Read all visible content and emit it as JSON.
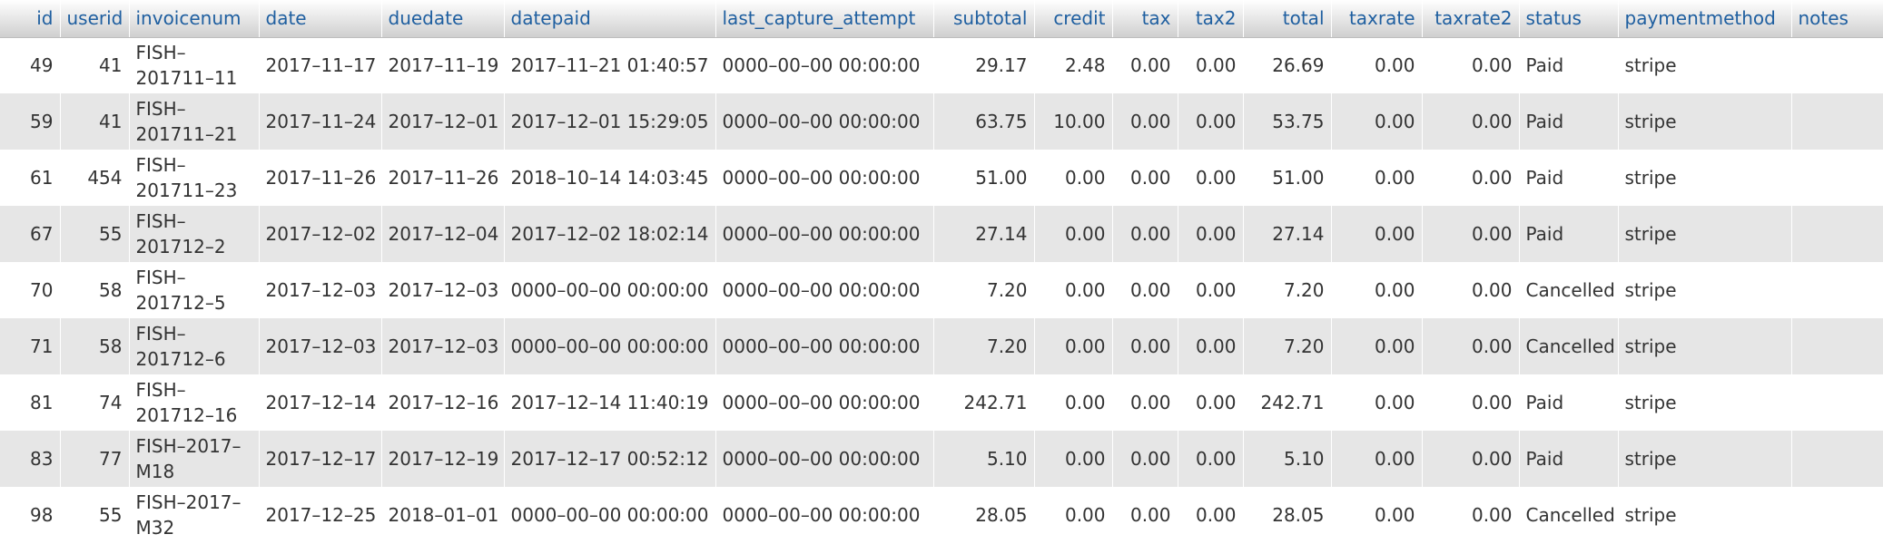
{
  "table": {
    "columns": [
      {
        "key": "id",
        "label": "id",
        "align": "right"
      },
      {
        "key": "userid",
        "label": "userid",
        "align": "right"
      },
      {
        "key": "invoicenum",
        "label": "invoicenum",
        "align": "left"
      },
      {
        "key": "date",
        "label": "date",
        "align": "left"
      },
      {
        "key": "duedate",
        "label": "duedate",
        "align": "left"
      },
      {
        "key": "datepaid",
        "label": "datepaid",
        "align": "left"
      },
      {
        "key": "last_capture_attempt",
        "label": "last_capture_attempt",
        "align": "left"
      },
      {
        "key": "subtotal",
        "label": "subtotal",
        "align": "right"
      },
      {
        "key": "credit",
        "label": "credit",
        "align": "right"
      },
      {
        "key": "tax",
        "label": "tax",
        "align": "right"
      },
      {
        "key": "tax2",
        "label": "tax2",
        "align": "right"
      },
      {
        "key": "total",
        "label": "total",
        "align": "right"
      },
      {
        "key": "taxrate",
        "label": "taxrate",
        "align": "right"
      },
      {
        "key": "taxrate2",
        "label": "taxrate2",
        "align": "right"
      },
      {
        "key": "status",
        "label": "status",
        "align": "left"
      },
      {
        "key": "paymentmethod",
        "label": "paymentmethod",
        "align": "left"
      },
      {
        "key": "notes",
        "label": "notes",
        "align": "left"
      }
    ],
    "rows": [
      {
        "id": "49",
        "userid": "41",
        "invoicenum": "FISH–201711–11",
        "date": "2017–11–17",
        "duedate": "2017–11–19",
        "datepaid": "2017–11–21 01:40:57",
        "last_capture_attempt": "0000–00–00 00:00:00",
        "subtotal": "29.17",
        "credit": "2.48",
        "tax": "0.00",
        "tax2": "0.00",
        "total": "26.69",
        "taxrate": "0.00",
        "taxrate2": "0.00",
        "status": "Paid",
        "paymentmethod": "stripe",
        "notes": ""
      },
      {
        "id": "59",
        "userid": "41",
        "invoicenum": "FISH–201711–21",
        "date": "2017–11–24",
        "duedate": "2017–12–01",
        "datepaid": "2017–12–01 15:29:05",
        "last_capture_attempt": "0000–00–00 00:00:00",
        "subtotal": "63.75",
        "credit": "10.00",
        "tax": "0.00",
        "tax2": "0.00",
        "total": "53.75",
        "taxrate": "0.00",
        "taxrate2": "0.00",
        "status": "Paid",
        "paymentmethod": "stripe",
        "notes": ""
      },
      {
        "id": "61",
        "userid": "454",
        "invoicenum": "FISH–201711–23",
        "date": "2017–11–26",
        "duedate": "2017–11–26",
        "datepaid": "2018–10–14 14:03:45",
        "last_capture_attempt": "0000–00–00 00:00:00",
        "subtotal": "51.00",
        "credit": "0.00",
        "tax": "0.00",
        "tax2": "0.00",
        "total": "51.00",
        "taxrate": "0.00",
        "taxrate2": "0.00",
        "status": "Paid",
        "paymentmethod": "stripe",
        "notes": ""
      },
      {
        "id": "67",
        "userid": "55",
        "invoicenum": "FISH–201712–2",
        "date": "2017–12–02",
        "duedate": "2017–12–04",
        "datepaid": "2017–12–02 18:02:14",
        "last_capture_attempt": "0000–00–00 00:00:00",
        "subtotal": "27.14",
        "credit": "0.00",
        "tax": "0.00",
        "tax2": "0.00",
        "total": "27.14",
        "taxrate": "0.00",
        "taxrate2": "0.00",
        "status": "Paid",
        "paymentmethod": "stripe",
        "notes": ""
      },
      {
        "id": "70",
        "userid": "58",
        "invoicenum": "FISH–201712–5",
        "date": "2017–12–03",
        "duedate": "2017–12–03",
        "datepaid": "0000–00–00 00:00:00",
        "last_capture_attempt": "0000–00–00 00:00:00",
        "subtotal": "7.20",
        "credit": "0.00",
        "tax": "0.00",
        "tax2": "0.00",
        "total": "7.20",
        "taxrate": "0.00",
        "taxrate2": "0.00",
        "status": "Cancelled",
        "paymentmethod": "stripe",
        "notes": ""
      },
      {
        "id": "71",
        "userid": "58",
        "invoicenum": "FISH–201712–6",
        "date": "2017–12–03",
        "duedate": "2017–12–03",
        "datepaid": "0000–00–00 00:00:00",
        "last_capture_attempt": "0000–00–00 00:00:00",
        "subtotal": "7.20",
        "credit": "0.00",
        "tax": "0.00",
        "tax2": "0.00",
        "total": "7.20",
        "taxrate": "0.00",
        "taxrate2": "0.00",
        "status": "Cancelled",
        "paymentmethod": "stripe",
        "notes": ""
      },
      {
        "id": "81",
        "userid": "74",
        "invoicenum": "FISH–201712–16",
        "date": "2017–12–14",
        "duedate": "2017–12–16",
        "datepaid": "2017–12–14 11:40:19",
        "last_capture_attempt": "0000–00–00 00:00:00",
        "subtotal": "242.71",
        "credit": "0.00",
        "tax": "0.00",
        "tax2": "0.00",
        "total": "242.71",
        "taxrate": "0.00",
        "taxrate2": "0.00",
        "status": "Paid",
        "paymentmethod": "stripe",
        "notes": ""
      },
      {
        "id": "83",
        "userid": "77",
        "invoicenum": "FISH–2017–M18",
        "date": "2017–12–17",
        "duedate": "2017–12–19",
        "datepaid": "2017–12–17 00:52:12",
        "last_capture_attempt": "0000–00–00 00:00:00",
        "subtotal": "5.10",
        "credit": "0.00",
        "tax": "0.00",
        "tax2": "0.00",
        "total": "5.10",
        "taxrate": "0.00",
        "taxrate2": "0.00",
        "status": "Paid",
        "paymentmethod": "stripe",
        "notes": ""
      },
      {
        "id": "98",
        "userid": "55",
        "invoicenum": "FISH–2017–M32",
        "date": "2017–12–25",
        "duedate": "2018–01–01",
        "datepaid": "0000–00–00 00:00:00",
        "last_capture_attempt": "0000–00–00 00:00:00",
        "subtotal": "28.05",
        "credit": "0.00",
        "tax": "0.00",
        "tax2": "0.00",
        "total": "28.05",
        "taxrate": "0.00",
        "taxrate2": "0.00",
        "status": "Cancelled",
        "paymentmethod": "stripe",
        "notes": ""
      }
    ]
  }
}
